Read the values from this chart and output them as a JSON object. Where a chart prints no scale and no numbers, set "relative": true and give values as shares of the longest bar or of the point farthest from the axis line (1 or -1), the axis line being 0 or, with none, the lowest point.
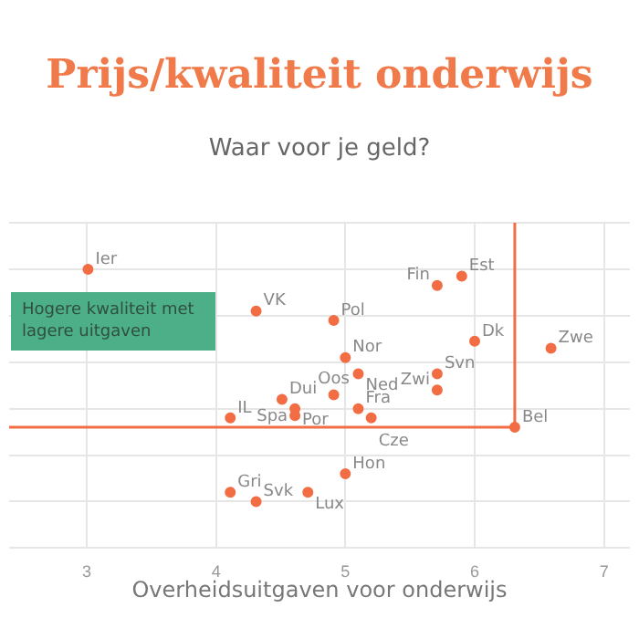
{
  "chart_data": {
    "type": "scatter",
    "title": "Prijs/kwaliteit onderwijs",
    "subtitle": "Waar voor je geld?",
    "xlabel": "Overheidsuitgaven voor onderwijs",
    "relative": true,
    "tick_labels": "x",
    "grid": true,
    "legend": false,
    "marker": "circle",
    "xlim": [
      2.4,
      7.2
    ],
    "xticks": [
      3,
      4,
      5,
      6,
      7
    ],
    "x": [
      3.01,
      4.31,
      4.11,
      4.11,
      4.31,
      4.71,
      4.51,
      4.61,
      4.61,
      5.9,
      5.71,
      4.91,
      5.0,
      5.1,
      6.0,
      6.59,
      5.71,
      5.71,
      4.91,
      5.1,
      5.2,
      6.31,
      5.0
    ],
    "series": [
      {
        "color": "#f26d43",
        "values": [
          1.0,
          0.82,
          0.36,
          0.04,
          0,
          0.04,
          0.44,
          0.4,
          0.37,
          0.97,
          0.93,
          0.78,
          0.62,
          0.55,
          0.69,
          0.66,
          0.55,
          0.48,
          0.46,
          0.4,
          0.36,
          0.32,
          0.12
        ]
      }
    ],
    "annotations": [
      {
        "text": "Ier",
        "x": 3.01,
        "y": 1.0
      },
      {
        "text": "VK",
        "x": 4.31,
        "y": 0.82
      },
      {
        "text": "IL",
        "x": 4.11,
        "y": 0.36
      },
      {
        "text": "Gri",
        "x": 4.11,
        "y": 0.04
      },
      {
        "text": "Svk",
        "x": 4.31,
        "y": 0
      },
      {
        "text": "Lux",
        "x": 4.71,
        "y": 0.04
      },
      {
        "text": "Dui",
        "x": 4.51,
        "y": 0.44
      },
      {
        "text": "Por",
        "x": 4.61,
        "y": 0.4
      },
      {
        "text": "Spa",
        "x": 4.61,
        "y": 0.37
      },
      {
        "text": "Est",
        "x": 5.9,
        "y": 0.97
      },
      {
        "text": "Fin",
        "x": 5.71,
        "y": 0.93
      },
      {
        "text": "Pol",
        "x": 4.91,
        "y": 0.78
      },
      {
        "text": "Nor",
        "x": 5.0,
        "y": 0.62
      },
      {
        "text": "Ned",
        "x": 5.1,
        "y": 0.55
      },
      {
        "text": "Dk",
        "x": 6.0,
        "y": 0.69
      },
      {
        "text": "Zwe",
        "x": 6.59,
        "y": 0.66
      },
      {
        "text": "Svn",
        "x": 5.71,
        "y": 0.55
      },
      {
        "text": "Zwi",
        "x": 5.71,
        "y": 0.48
      },
      {
        "text": "Oos",
        "x": 4.91,
        "y": 0.46
      },
      {
        "text": "Fra",
        "x": 5.1,
        "y": 0.4
      },
      {
        "text": "Cze",
        "x": 5.2,
        "y": 0.36
      },
      {
        "text": "Bel",
        "x": 6.31,
        "y": 0.32
      },
      {
        "text": "Hon",
        "x": 5.0,
        "y": 0.12
      },
      "Hogere kwaliteit met lagere uitgaven"
    ],
    "ref_lines": [
      {
        "axis": "x",
        "value": 6.31,
        "color": "#f26d43"
      },
      {
        "axis": "y",
        "value": 0.32,
        "color": "#f26d43"
      }
    ]
  }
}
